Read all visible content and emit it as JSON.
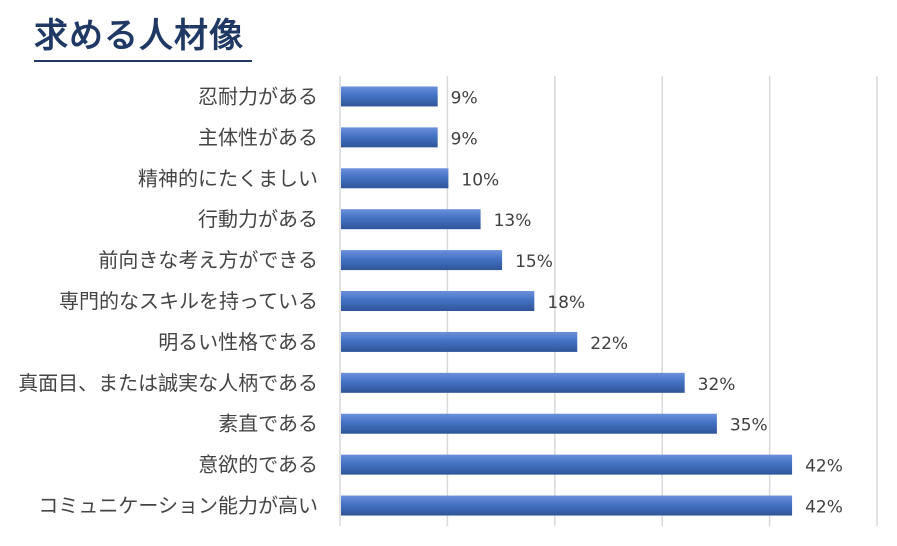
{
  "title": "求める人材像",
  "chart_data": {
    "type": "bar",
    "orientation": "horizontal",
    "title": "求める人材像",
    "categories": [
      "忍耐力がある",
      "主体性がある",
      "精神的にたくましい",
      "行動力がある",
      "前向きな考え方ができる",
      "専門的なスキルを持っている",
      "明るい性格である",
      "真面目、または誠実な人柄である",
      "素直である",
      "意欲的である",
      "コミュニケーション能力が高い"
    ],
    "values": [
      9,
      9,
      10,
      13,
      15,
      18,
      22,
      32,
      35,
      42,
      42
    ],
    "value_labels": [
      "9%",
      "9%",
      "10%",
      "13%",
      "15%",
      "18%",
      "22%",
      "32%",
      "35%",
      "42%",
      "42%"
    ],
    "unit": "%",
    "xlim": [
      0,
      50
    ],
    "grid": true,
    "legend": "none",
    "colors": {
      "bar_top": "#6d90dc",
      "bar_mid": "#4472c4",
      "bar_bottom": "#2f5597",
      "grid": "#d9d9d9"
    }
  }
}
